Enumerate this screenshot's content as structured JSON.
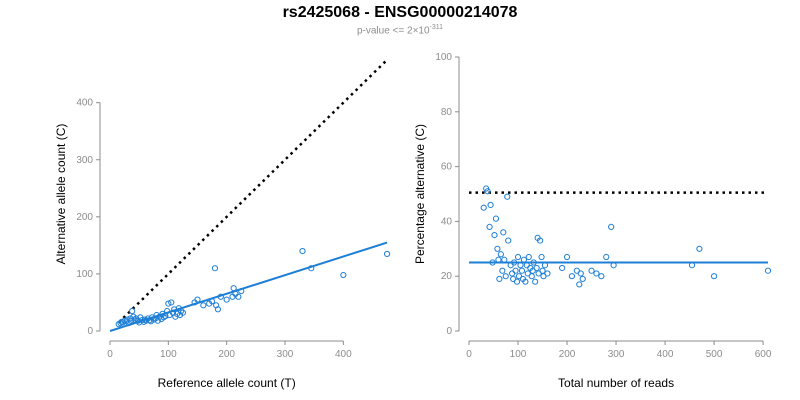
{
  "header": {
    "title": "rs2425068 - ENSG00000214078",
    "subtitle_prefix": "p-value <= 2×10",
    "subtitle_exp": "-311"
  },
  "colors": {
    "points": "#1e7fd6",
    "fit": "#1e7fd6",
    "reference": "#000000",
    "axis": "#8c8c8c"
  },
  "chart_data": [
    {
      "type": "scatter",
      "xlabel": "Reference allele count (T)",
      "ylabel": "Alternative allele count (C)",
      "xlim": [
        0,
        480
      ],
      "ylim": [
        0,
        480
      ],
      "xticks": [
        0,
        100,
        200,
        300,
        400
      ],
      "yticks": [
        0,
        100,
        200,
        300,
        400
      ],
      "points": [
        [
          15,
          12
        ],
        [
          18,
          14
        ],
        [
          20,
          16
        ],
        [
          22,
          15
        ],
        [
          25,
          18
        ],
        [
          28,
          17
        ],
        [
          30,
          20
        ],
        [
          32,
          14
        ],
        [
          35,
          22
        ],
        [
          36,
          18
        ],
        [
          38,
          35
        ],
        [
          40,
          25
        ],
        [
          42,
          20
        ],
        [
          45,
          22
        ],
        [
          48,
          18
        ],
        [
          50,
          15
        ],
        [
          52,
          24
        ],
        [
          55,
          19
        ],
        [
          58,
          16
        ],
        [
          60,
          20
        ],
        [
          62,
          18
        ],
        [
          65,
          22
        ],
        [
          68,
          19
        ],
        [
          70,
          17
        ],
        [
          72,
          24
        ],
        [
          75,
          20
        ],
        [
          78,
          22
        ],
        [
          80,
          28
        ],
        [
          82,
          18
        ],
        [
          85,
          25
        ],
        [
          88,
          21
        ],
        [
          90,
          30
        ],
        [
          92,
          24
        ],
        [
          95,
          26
        ],
        [
          98,
          35
        ],
        [
          100,
          48
        ],
        [
          102,
          28
        ],
        [
          105,
          50
        ],
        [
          108,
          32
        ],
        [
          110,
          38
        ],
        [
          112,
          25
        ],
        [
          115,
          30
        ],
        [
          118,
          40
        ],
        [
          120,
          28
        ],
        [
          122,
          35
        ],
        [
          125,
          32
        ],
        [
          145,
          50
        ],
        [
          150,
          55
        ],
        [
          160,
          45
        ],
        [
          170,
          48
        ],
        [
          175,
          52
        ],
        [
          180,
          110
        ],
        [
          182,
          45
        ],
        [
          185,
          38
        ],
        [
          190,
          60
        ],
        [
          200,
          55
        ],
        [
          210,
          60
        ],
        [
          212,
          75
        ],
        [
          215,
          65
        ],
        [
          220,
          60
        ],
        [
          225,
          70
        ],
        [
          330,
          140
        ],
        [
          345,
          110
        ],
        [
          400,
          98
        ],
        [
          475,
          135
        ]
      ],
      "fit_line": {
        "x": [
          0,
          475
        ],
        "y": [
          0,
          155
        ]
      },
      "reference_line": {
        "x": [
          15,
          475
        ],
        "y": [
          15,
          475
        ]
      }
    },
    {
      "type": "scatter",
      "xlabel": "Total number of reads",
      "ylabel": "Percentage alternative (C)",
      "xlim": [
        0,
        610
      ],
      "ylim": [
        0,
        100
      ],
      "xticks": [
        0,
        100,
        200,
        300,
        400,
        500,
        600
      ],
      "yticks": [
        0,
        20,
        40,
        60,
        80,
        100
      ],
      "points": [
        [
          30,
          45
        ],
        [
          35,
          52
        ],
        [
          38,
          51
        ],
        [
          42,
          38
        ],
        [
          44,
          46
        ],
        [
          48,
          25
        ],
        [
          52,
          35
        ],
        [
          55,
          41
        ],
        [
          58,
          30
        ],
        [
          60,
          26
        ],
        [
          62,
          19
        ],
        [
          65,
          28
        ],
        [
          68,
          22
        ],
        [
          70,
          36
        ],
        [
          72,
          26
        ],
        [
          75,
          20
        ],
        [
          78,
          49
        ],
        [
          80,
          33
        ],
        [
          85,
          24
        ],
        [
          88,
          21
        ],
        [
          90,
          19
        ],
        [
          92,
          25
        ],
        [
          95,
          22
        ],
        [
          98,
          18
        ],
        [
          100,
          27
        ],
        [
          102,
          20
        ],
        [
          105,
          24
        ],
        [
          108,
          22
        ],
        [
          110,
          19
        ],
        [
          112,
          26
        ],
        [
          115,
          18
        ],
        [
          118,
          24
        ],
        [
          120,
          21
        ],
        [
          122,
          27
        ],
        [
          125,
          23
        ],
        [
          128,
          20
        ],
        [
          130,
          22
        ],
        [
          132,
          25
        ],
        [
          135,
          18
        ],
        [
          138,
          23
        ],
        [
          140,
          34
        ],
        [
          142,
          21
        ],
        [
          145,
          33
        ],
        [
          148,
          27
        ],
        [
          150,
          22
        ],
        [
          152,
          20
        ],
        [
          155,
          24
        ],
        [
          160,
          21
        ],
        [
          190,
          23
        ],
        [
          200,
          27
        ],
        [
          210,
          20
        ],
        [
          220,
          22
        ],
        [
          225,
          17
        ],
        [
          228,
          21
        ],
        [
          232,
          19
        ],
        [
          250,
          22
        ],
        [
          260,
          21
        ],
        [
          270,
          20
        ],
        [
          280,
          27
        ],
        [
          290,
          38
        ],
        [
          295,
          24
        ],
        [
          455,
          24
        ],
        [
          470,
          30
        ],
        [
          500,
          20
        ],
        [
          610,
          22
        ]
      ],
      "fit_line": {
        "x": [
          0,
          610
        ],
        "y": [
          25,
          25
        ]
      },
      "reference_line": {
        "x": [
          0,
          610
        ],
        "y": [
          50.5,
          50.5
        ]
      }
    }
  ]
}
